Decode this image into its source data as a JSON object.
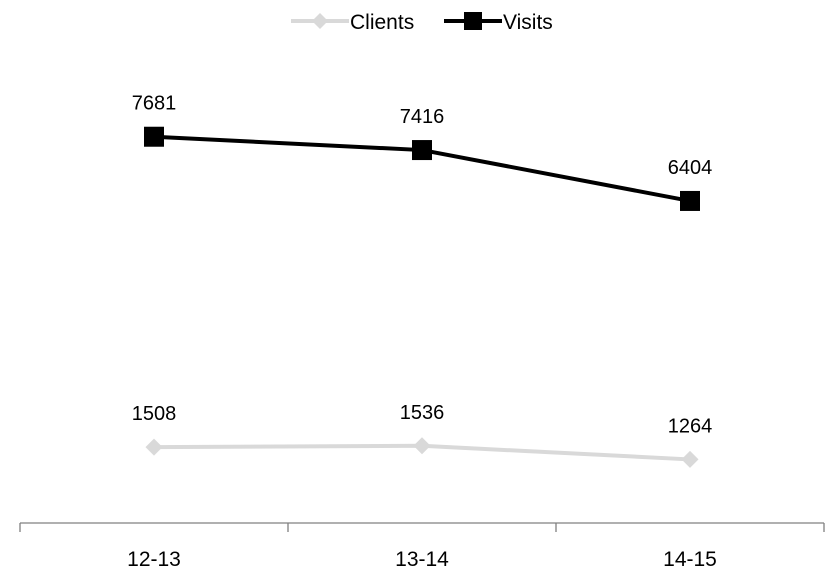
{
  "chart_data": {
    "type": "line",
    "categories": [
      "12-13",
      "13-14",
      "14-15"
    ],
    "series": [
      {
        "name": "Clients",
        "values": [
          1508,
          1536,
          1264
        ],
        "color": "#d9d9d9",
        "marker": "diamond"
      },
      {
        "name": "Visits",
        "values": [
          7681,
          7416,
          6404
        ],
        "color": "#000000",
        "marker": "square"
      }
    ],
    "data_labels": true,
    "ylim": [
      0,
      10400
    ],
    "y_axis_visible": false,
    "grid": false,
    "legend": "top-center"
  }
}
